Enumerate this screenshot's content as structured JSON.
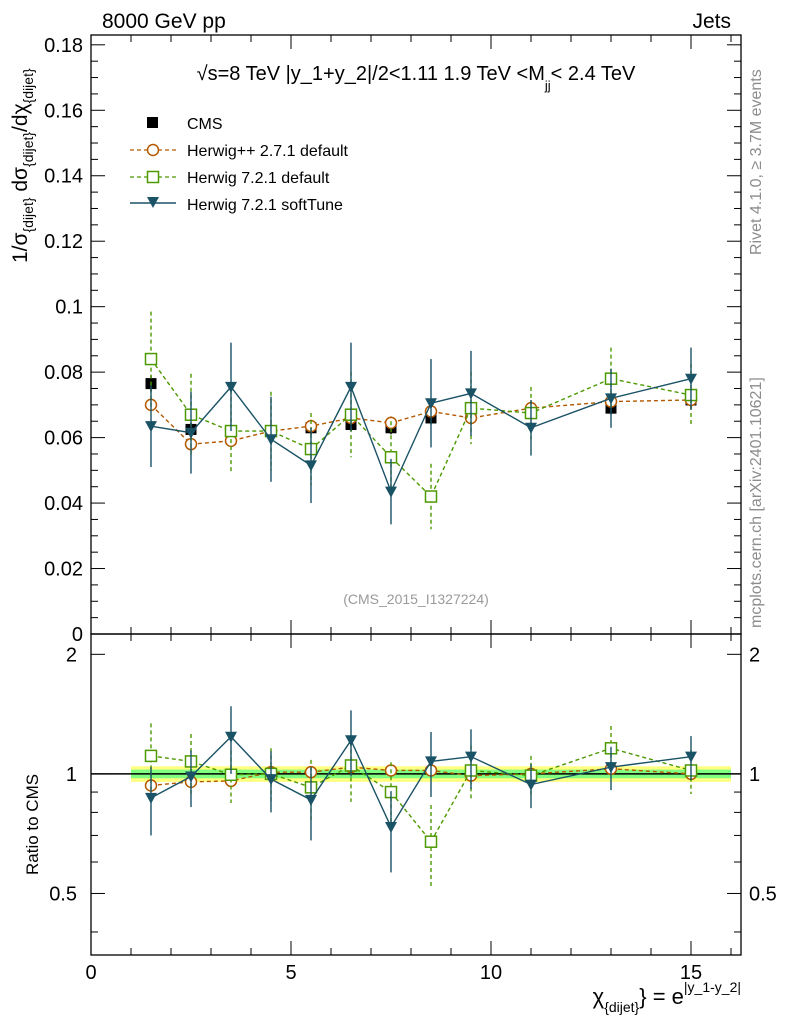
{
  "header": {
    "left": "8000 GeV pp",
    "right": "Jets"
  },
  "plot_title": "√s=8 TeV |y_1+y_2|/2<1.11 1.9 TeV <M",
  "plot_title_sub": "jj",
  "plot_title_end": "< 2.4 TeV",
  "side_labels": {
    "rivet": "Rivet 4.1.0, ≥ 3.7M events",
    "mcplots": "mcplots.cern.ch [arXiv:2401.10621]"
  },
  "analysis_tag": "(CMS_2015_I1327224)",
  "colors": {
    "cms": "#000000",
    "herwigpp": "#b35900",
    "herwig721": "#4d9900",
    "softtune": "#1a5266",
    "band_outer": "#ffff80",
    "band_inner": "#80ff80"
  },
  "chart_data": [
    {
      "type": "scatter",
      "title": "√s=8 TeV |y_1+y_2|/2<1.11 1.9 TeV <M jj < 2.4 TeV",
      "ylabel": "1/σ_{dijet} dσ_{dijet}/dχ_{dijet}",
      "xlim": [
        0,
        16.25
      ],
      "ylim": [
        0,
        0.183
      ],
      "yticks": [
        "0",
        "0.02",
        "0.04",
        "0.06",
        "0.08",
        "0.1",
        "0.12",
        "0.14",
        "0.16",
        "0.18"
      ],
      "x": [
        1.5,
        2.5,
        3.5,
        4.5,
        5.5,
        6.5,
        7.5,
        8.5,
        9.5,
        11,
        13,
        15
      ],
      "series": [
        {
          "name": "CMS",
          "values": [
            0.0765,
            0.0625,
            0.062,
            0.062,
            0.063,
            0.064,
            0.063,
            0.066,
            0.068,
            0.068,
            0.069,
            0.0715
          ],
          "errors": [
            0.0025,
            0.002,
            0.002,
            0.002,
            0.002,
            0.002,
            0.002,
            0.002,
            0.002,
            0.002,
            0.002,
            0.0025
          ]
        },
        {
          "name": "Herwig++ 2.7.1 default",
          "values": [
            0.07,
            0.058,
            0.059,
            0.062,
            0.0635,
            0.066,
            0.0645,
            0.068,
            0.066,
            0.069,
            0.071,
            0.0715
          ],
          "errors": [
            0.002,
            0.002,
            0.002,
            0.002,
            0.002,
            0.002,
            0.002,
            0.002,
            0.002,
            0.002,
            0.002,
            0.002
          ]
        },
        {
          "name": "Herwig 7.2.1 default",
          "values": [
            0.084,
            0.067,
            0.062,
            0.062,
            0.0565,
            0.067,
            0.054,
            0.042,
            0.069,
            0.0675,
            0.078,
            0.073
          ],
          "errors": [
            0.0145,
            0.0125,
            0.0125,
            0.012,
            0.011,
            0.013,
            0.011,
            0.01,
            0.011,
            0.008,
            0.0095,
            0.0095
          ]
        },
        {
          "name": "Herwig 7.2.1 softTune",
          "values": [
            0.0635,
            0.0615,
            0.0755,
            0.0595,
            0.0515,
            0.0755,
            0.0435,
            0.0705,
            0.0735,
            0.063,
            0.072,
            0.078
          ],
          "errors": [
            0.0125,
            0.0125,
            0.0135,
            0.013,
            0.0115,
            0.0135,
            0.01,
            0.0135,
            0.013,
            0.0085,
            0.009,
            0.0095
          ]
        }
      ]
    },
    {
      "type": "scatter",
      "ylabel": "Ratio to CMS",
      "xlabel": "χ_{dijet} = e^{|y_1-y_2|}",
      "xlim": [
        0,
        16.25
      ],
      "ylim": [
        0.35,
        2.25
      ],
      "yticks": [
        "0.5",
        "1",
        "2"
      ],
      "xticks": [
        "0",
        "5",
        "10",
        "15"
      ],
      "x": [
        1.5,
        2.5,
        3.5,
        4.5,
        5.5,
        6.5,
        7.5,
        8.5,
        9.5,
        11,
        13,
        15
      ],
      "band_x_range": [
        1.0,
        16.0
      ],
      "band_outer": 0.045,
      "band_inner": 0.025,
      "series": [
        {
          "name": "Herwig++ 2.7.1 default",
          "values": [
            0.935,
            0.955,
            0.96,
            1.01,
            1.01,
            1.04,
            1.02,
            1.02,
            0.99,
            1.0,
            1.03,
            1.0
          ],
          "errors": [
            0.02,
            0.02,
            0.02,
            0.02,
            0.02,
            0.02,
            0.02,
            0.02,
            0.02,
            0.02,
            0.02,
            0.02
          ]
        },
        {
          "name": "Herwig 7.2.1 default",
          "values": [
            1.11,
            1.075,
            0.995,
            1.0,
            0.925,
            1.05,
            0.9,
            0.675,
            1.02,
            0.99,
            1.16,
            1.02
          ],
          "errors": [
            0.23,
            0.185,
            0.15,
            0.16,
            0.16,
            0.2,
            0.17,
            0.16,
            0.16,
            0.12,
            0.16,
            0.13
          ]
        },
        {
          "name": "Herwig 7.2.1 softTune",
          "values": [
            0.87,
            0.985,
            1.24,
            0.97,
            0.86,
            1.215,
            0.735,
            1.075,
            1.105,
            0.94,
            1.04,
            1.105
          ],
          "errors": [
            0.17,
            0.16,
            0.24,
            0.17,
            0.18,
            0.23,
            0.17,
            0.2,
            0.19,
            0.12,
            0.13,
            0.14
          ]
        }
      ]
    }
  ]
}
